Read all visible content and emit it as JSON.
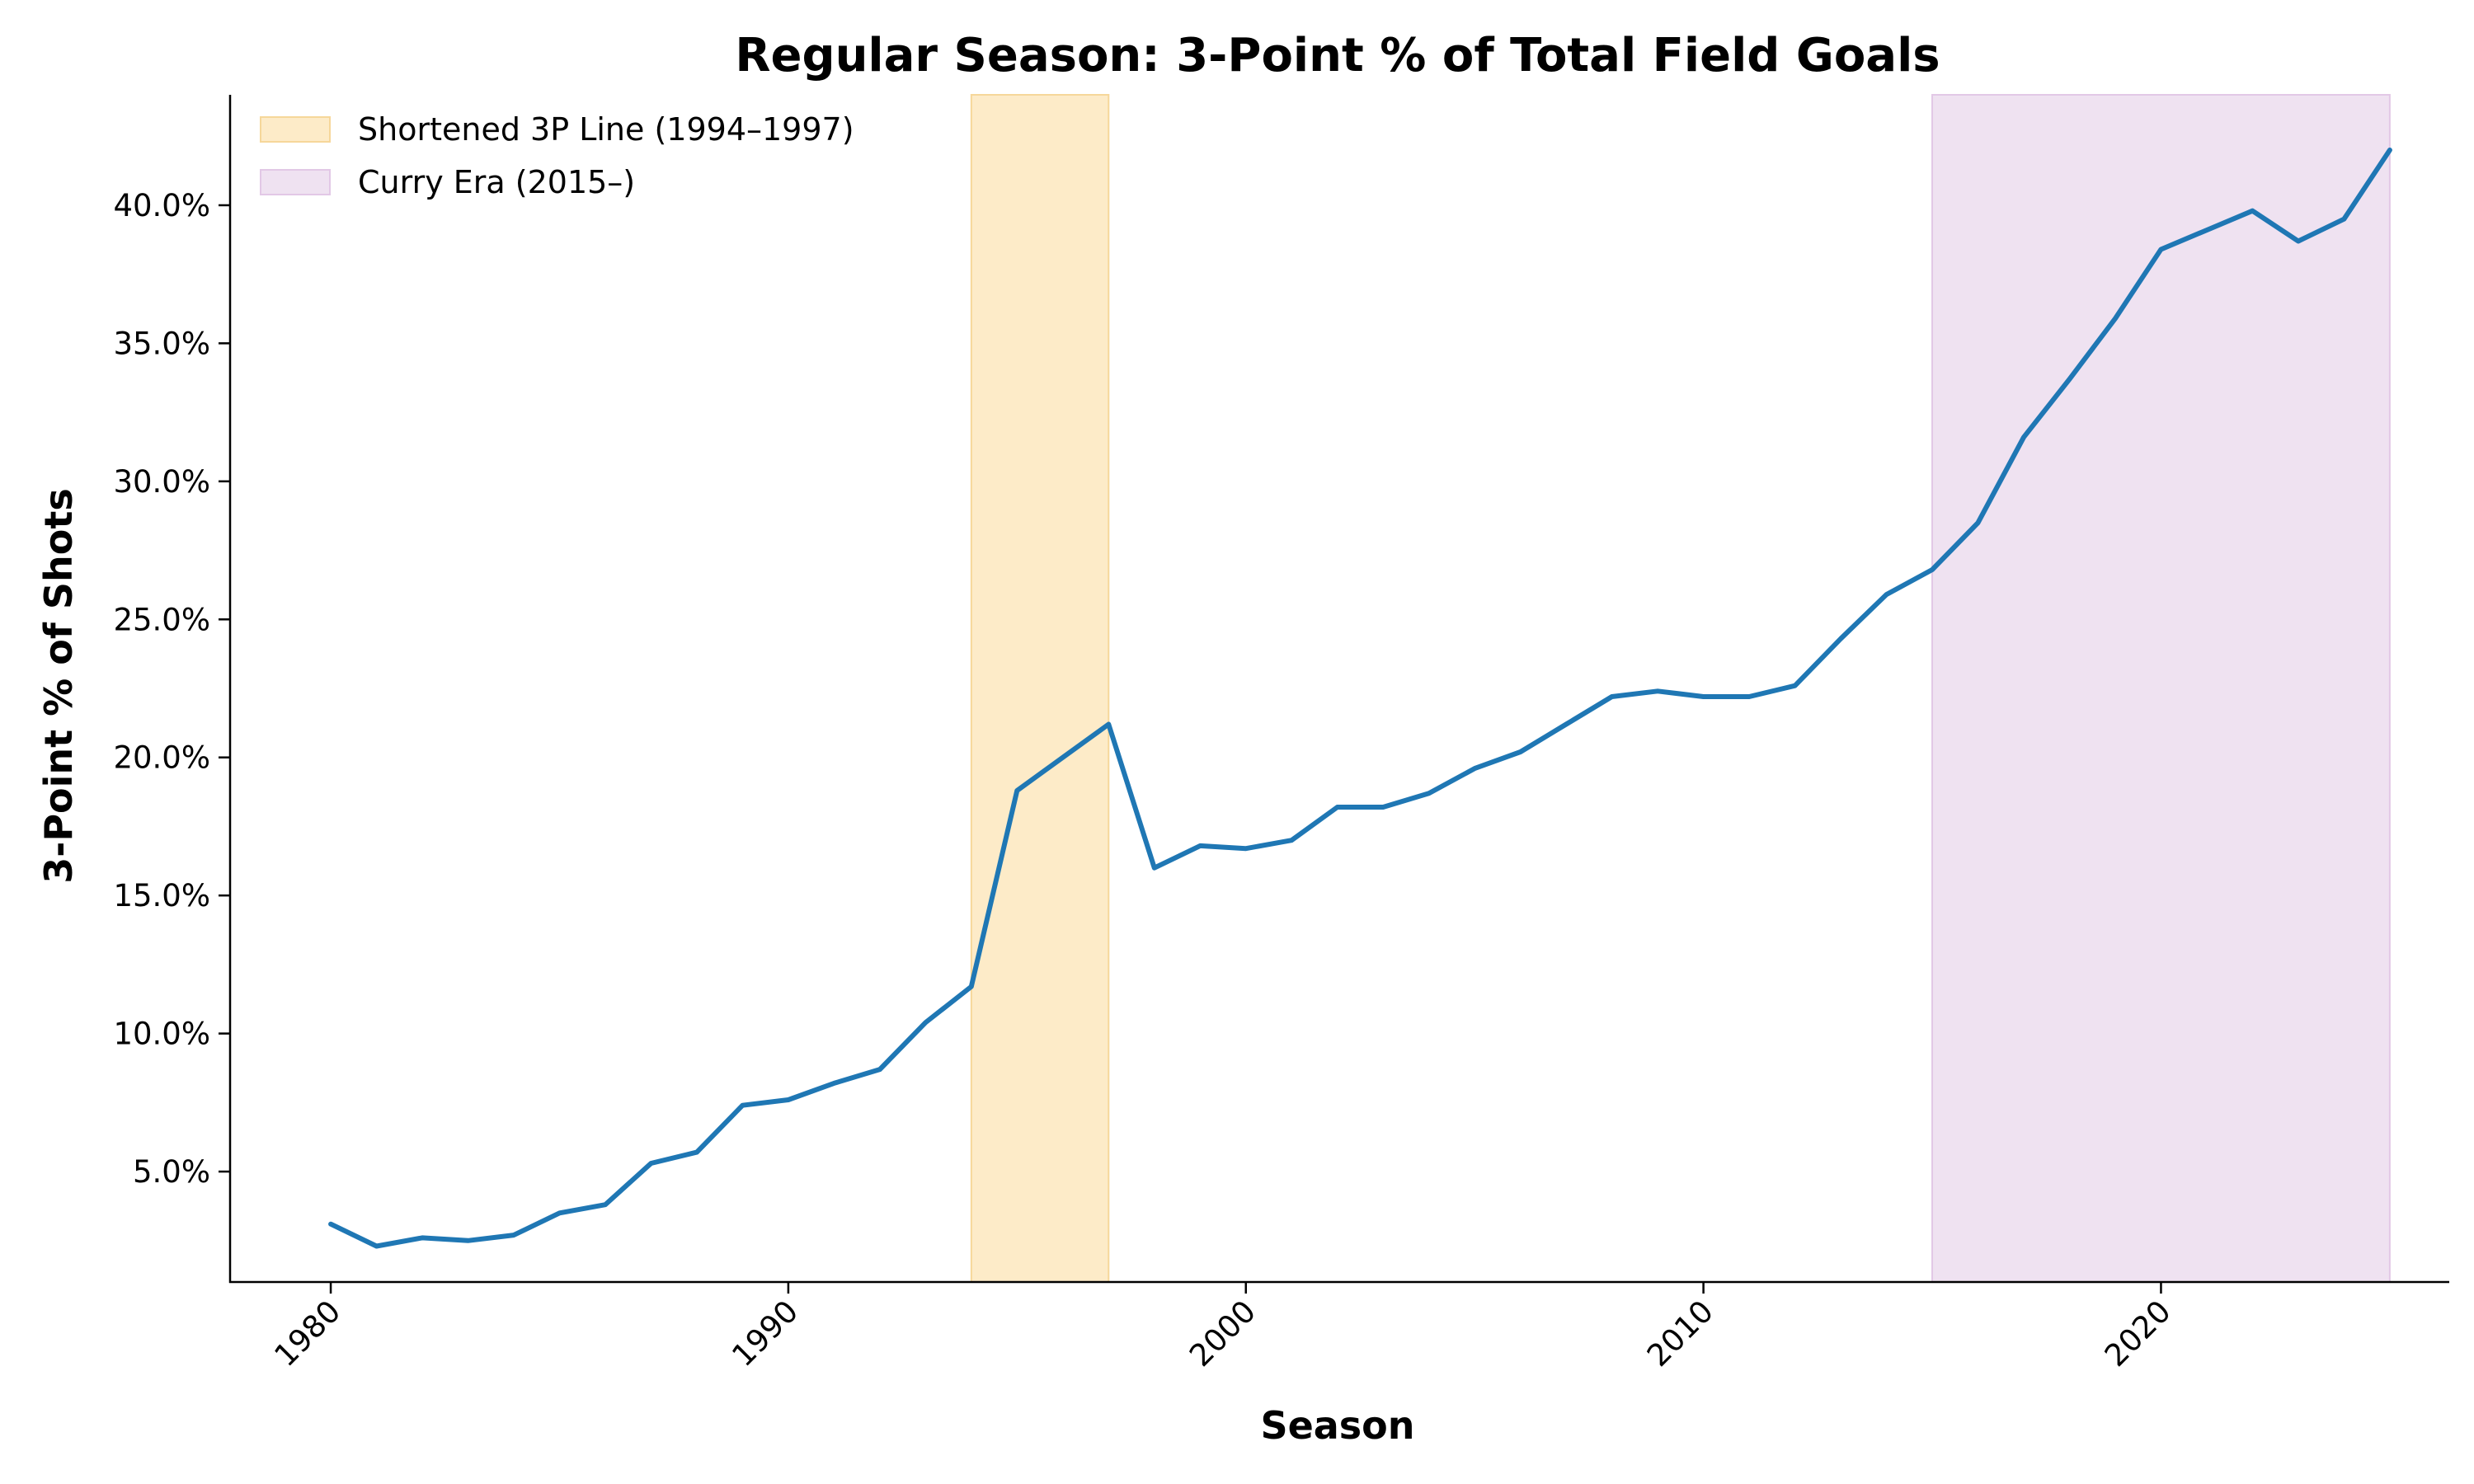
{
  "chart_data": {
    "type": "line",
    "title": "Regular Season: 3-Point % of Total Field Goals",
    "xlabel": "Season",
    "ylabel": "3-Point % of Shots",
    "xlim": [
      1977.8,
      2026.3
    ],
    "ylim": [
      0.01,
      0.44
    ],
    "x_ticks": [
      1980,
      1990,
      2000,
      2010,
      2020
    ],
    "x_tick_labels": [
      "1980",
      "1990",
      "2000",
      "2010",
      "2020"
    ],
    "y_ticks": [
      0.05,
      0.1,
      0.15,
      0.2,
      0.25,
      0.3,
      0.35,
      0.4
    ],
    "y_tick_labels": [
      "5.0%",
      "10.0%",
      "15.0%",
      "20.0%",
      "25.0%",
      "30.0%",
      "35.0%",
      "40.0%"
    ],
    "grid": false,
    "legend_position": "top-left",
    "series": [
      {
        "color": "#1f77b4",
        "x": [
          1980,
          1981,
          1982,
          1983,
          1984,
          1985,
          1986,
          1987,
          1988,
          1989,
          1990,
          1991,
          1992,
          1993,
          1994,
          1995,
          1996,
          1997,
          1998,
          1999,
          2000,
          2001,
          2002,
          2003,
          2004,
          2005,
          2006,
          2007,
          2008,
          2009,
          2010,
          2011,
          2012,
          2013,
          2014,
          2015,
          2016,
          2017,
          2018,
          2019,
          2020,
          2021,
          2022,
          2023,
          2024,
          2025
        ],
        "y": [
          0.031,
          0.023,
          0.026,
          0.025,
          0.027,
          0.035,
          0.038,
          0.053,
          0.057,
          0.074,
          0.076,
          0.082,
          0.087,
          0.104,
          0.117,
          0.188,
          0.2,
          0.212,
          0.16,
          0.168,
          0.167,
          0.17,
          0.182,
          0.182,
          0.187,
          0.196,
          0.202,
          0.212,
          0.222,
          0.224,
          0.222,
          0.222,
          0.226,
          0.243,
          0.259,
          0.268,
          0.285,
          0.316,
          0.337,
          0.359,
          0.384,
          0.391,
          0.398,
          0.387,
          0.395,
          0.42
        ]
      }
    ],
    "shaded_regions": [
      {
        "label": "Shortened 3P Line (1994–1997)",
        "x_start": 1994,
        "x_end": 1997,
        "color": "#fdebc8",
        "edge_color": "#f6d79a"
      },
      {
        "label": "Curry Era (2015–)",
        "x_start": 2015,
        "x_end": 2025,
        "color": "#efe2f1",
        "edge_color": "#e2c8e6"
      }
    ]
  }
}
